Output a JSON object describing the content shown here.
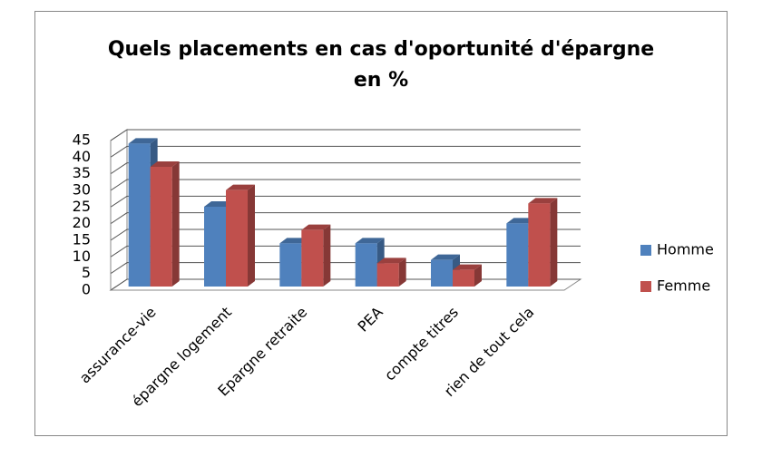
{
  "chart_data": {
    "type": "bar3d",
    "title": "Quels placements en cas d'oportunité d'épargne en %",
    "categories": [
      "assurance-vie",
      "épargne logement",
      "Epargne retraite",
      "PEA",
      "compte titres",
      "rien de tout cela"
    ],
    "series": [
      {
        "name": "Homme",
        "color": "#4f81bd",
        "values": [
          43,
          24,
          13,
          13,
          8,
          19
        ]
      },
      {
        "name": "Femme",
        "color": "#c0504d",
        "values": [
          36,
          29,
          17,
          7,
          5,
          25
        ]
      }
    ],
    "ylim": [
      0,
      45
    ],
    "yticks": [
      0,
      5,
      10,
      15,
      20,
      25,
      30,
      35,
      40,
      45
    ],
    "grid": true,
    "legend": "right"
  }
}
